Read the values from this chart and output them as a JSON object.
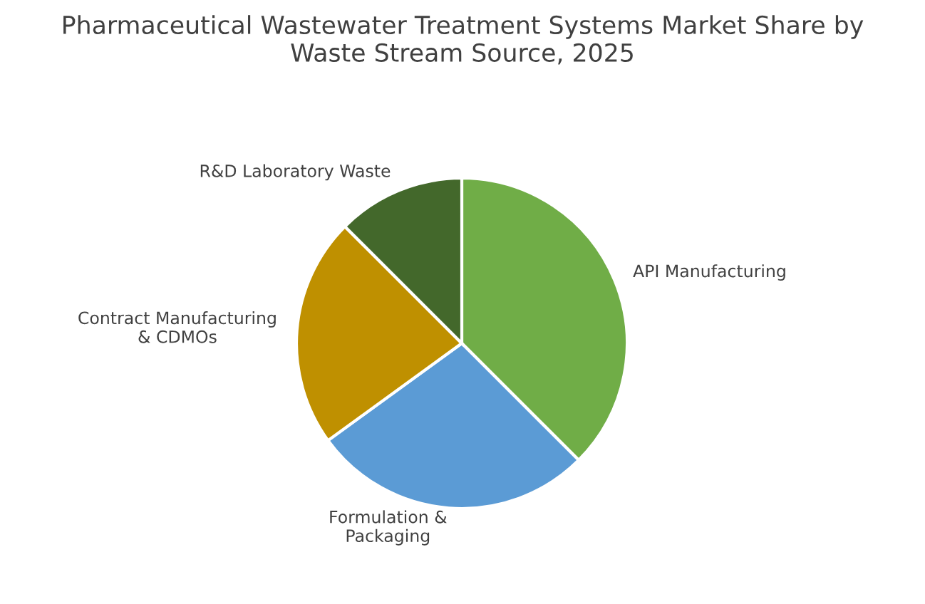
{
  "chart_data": {
    "type": "pie",
    "title": "Pharmaceutical Wastewater Treatment Systems Market Share by\nWaste Stream Source, 2025",
    "categories": [
      "API Manufacturing",
      "Formulation &\nPackaging",
      "Contract Manufacturing\n& CDMOs",
      "R&D Laboratory Waste"
    ],
    "values": [
      37.5,
      27.5,
      22.5,
      12.5
    ],
    "colors": [
      "#70ad47",
      "#5b9bd5",
      "#bf9000",
      "#43682b"
    ],
    "legend": false
  }
}
